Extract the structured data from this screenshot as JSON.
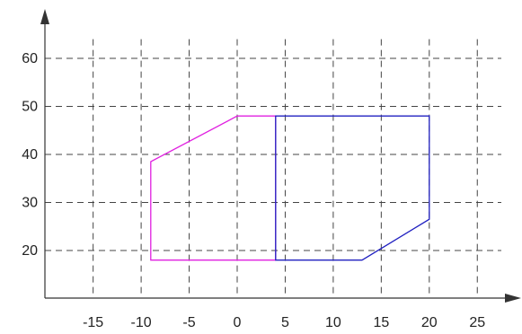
{
  "chart_data": {
    "type": "line",
    "title": "",
    "xlabel": "",
    "ylabel": "",
    "xlim": [
      -20.5,
      30.5
    ],
    "ylim": [
      10,
      66
    ],
    "x_ticks": [
      -15,
      -10,
      -5,
      0,
      5,
      10,
      15,
      20,
      25
    ],
    "y_ticks": [
      20,
      30,
      40,
      50,
      60
    ],
    "x_tick_labels": [
      "-15",
      "-10",
      "-5",
      "0",
      "5",
      "10",
      "15",
      "20",
      "25"
    ],
    "y_tick_labels": [
      "20",
      "30",
      "40",
      "50",
      "60"
    ],
    "grid": true,
    "series": [
      {
        "color": "#e020e0",
        "closed": true,
        "points": [
          [
            -9,
            18
          ],
          [
            -9,
            38.5
          ],
          [
            0,
            48
          ],
          [
            4,
            48
          ],
          [
            4,
            18
          ]
        ]
      },
      {
        "color": "#2020c0",
        "closed": true,
        "points": [
          [
            4,
            48
          ],
          [
            20,
            48
          ],
          [
            20,
            26.5
          ],
          [
            13,
            18
          ],
          [
            4,
            18
          ]
        ]
      }
    ]
  }
}
